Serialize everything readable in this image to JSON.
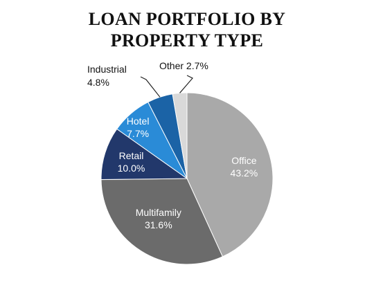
{
  "chart_data": {
    "type": "pie",
    "title_line1": "LOAN PORTFOLIO BY",
    "title_line2": "PROPERTY TYPE",
    "slices": [
      {
        "label": "Office",
        "pct_text": "43.2%",
        "value": 43.2,
        "color": "#A9A9A9",
        "text_color": "#ffffff"
      },
      {
        "label": "Multifamily",
        "pct_text": "31.6%",
        "value": 31.6,
        "color": "#6B6B6B",
        "text_color": "#ffffff"
      },
      {
        "label": "Retail",
        "pct_text": "10.0%",
        "value": 10.0,
        "color": "#22386B",
        "text_color": "#ffffff"
      },
      {
        "label": "Hotel",
        "pct_text": "7.7%",
        "value": 7.7,
        "color": "#2A8BD7",
        "text_color": "#ffffff"
      },
      {
        "label": "Industrial",
        "pct_text": "4.8%",
        "value": 4.8,
        "color": "#1B63A6",
        "text_color": "#111111"
      },
      {
        "label": "Other",
        "pct_text": "2.7%",
        "value": 2.7,
        "color": "#D9D9D9",
        "text_color": "#111111"
      }
    ]
  }
}
